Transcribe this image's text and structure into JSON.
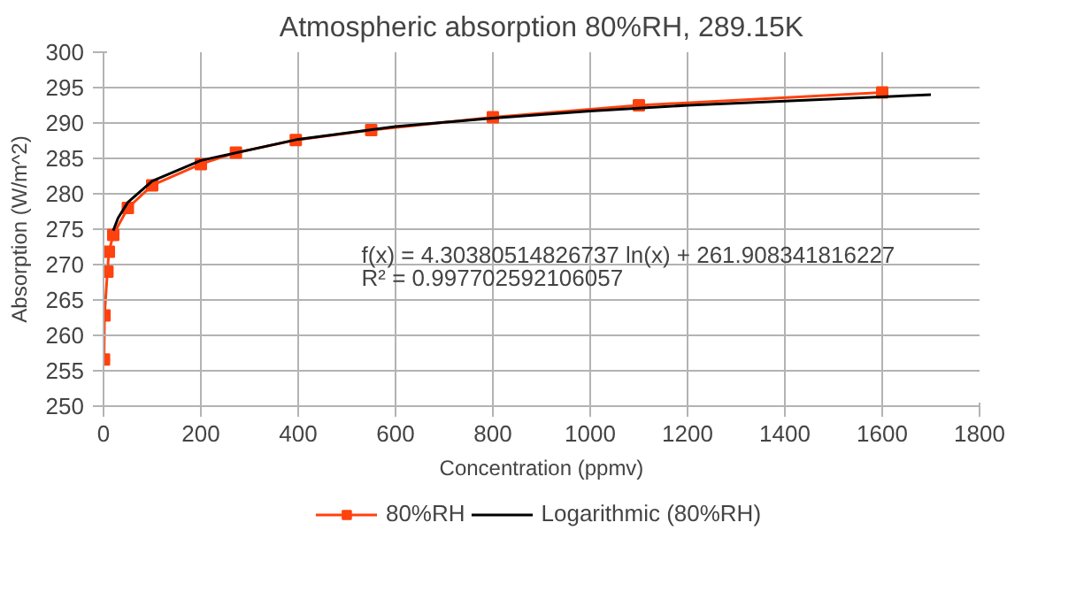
{
  "chart_data": {
    "type": "line",
    "title": "Atmospheric absorption 80%RH, 289.15K",
    "xlabel": "Concentration (ppmv)",
    "ylabel": "Absorption (W/m^2)",
    "series": [
      {
        "name": "80%RH",
        "color": "#ff420e",
        "marker": "square",
        "x": [
          1,
          2,
          8,
          11,
          20,
          50,
          100,
          200,
          272,
          395,
          550,
          800,
          1100,
          1600
        ],
        "values": [
          256.6,
          262.8,
          269.0,
          271.8,
          274.2,
          278.0,
          281.2,
          284.2,
          285.8,
          287.6,
          289.0,
          290.8,
          292.5,
          294.3
        ]
      },
      {
        "name": "Logarithmic (80%RH)",
        "color": "#000000",
        "marker": "none",
        "x": [
          20,
          30,
          50,
          100,
          200,
          400,
          600,
          800,
          1000,
          1200,
          1400,
          1700
        ],
        "values": [
          274.8,
          276.6,
          278.8,
          281.8,
          284.7,
          287.7,
          289.5,
          290.7,
          291.7,
          292.5,
          293.1,
          294.0
        ]
      }
    ],
    "xlim": [
      0,
      1800
    ],
    "xticks": [
      0,
      200,
      400,
      600,
      800,
      1000,
      1200,
      1400,
      1600,
      1800
    ],
    "ylim": [
      250,
      300
    ],
    "yticks": [
      250,
      255,
      260,
      265,
      270,
      275,
      280,
      285,
      290,
      295,
      300
    ],
    "annotations": [
      "f(x) = 4.30380514826737 ln(x) + 261.908341816227",
      "R² = 0.997702592106057"
    ],
    "grid": true,
    "legend": "bottom",
    "line_style": "solid"
  }
}
